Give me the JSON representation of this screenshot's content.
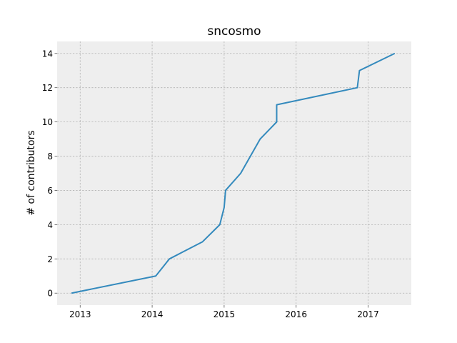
{
  "chart_data": {
    "type": "line",
    "title": "sncosmo",
    "xlabel": "",
    "ylabel": "# of contributors",
    "xlim": [
      2012.68,
      2017.6
    ],
    "ylim": [
      -0.7,
      14.7
    ],
    "xticks": [
      2013,
      2014,
      2015,
      2016,
      2017
    ],
    "xtick_labels": [
      "2013",
      "2014",
      "2015",
      "2016",
      "2017"
    ],
    "yticks": [
      0,
      2,
      4,
      6,
      8,
      10,
      12,
      14
    ],
    "ytick_labels": [
      "0",
      "2",
      "4",
      "6",
      "8",
      "10",
      "12",
      "14"
    ],
    "grid": true,
    "legend": "none",
    "background_color": "#eeeeee",
    "grid_color": "#b2b2b2",
    "series": [
      {
        "color": "#348abd",
        "x": [
          2012.88,
          2014.05,
          2014.24,
          2014.7,
          2014.94,
          2015.0,
          2015.02,
          2015.23,
          2015.5,
          2015.73,
          2015.73,
          2016.85,
          2016.88,
          2017.37
        ],
        "y": [
          0,
          1,
          2,
          3,
          4,
          5,
          6,
          7,
          9,
          10,
          11,
          12,
          13,
          14
        ]
      }
    ]
  }
}
